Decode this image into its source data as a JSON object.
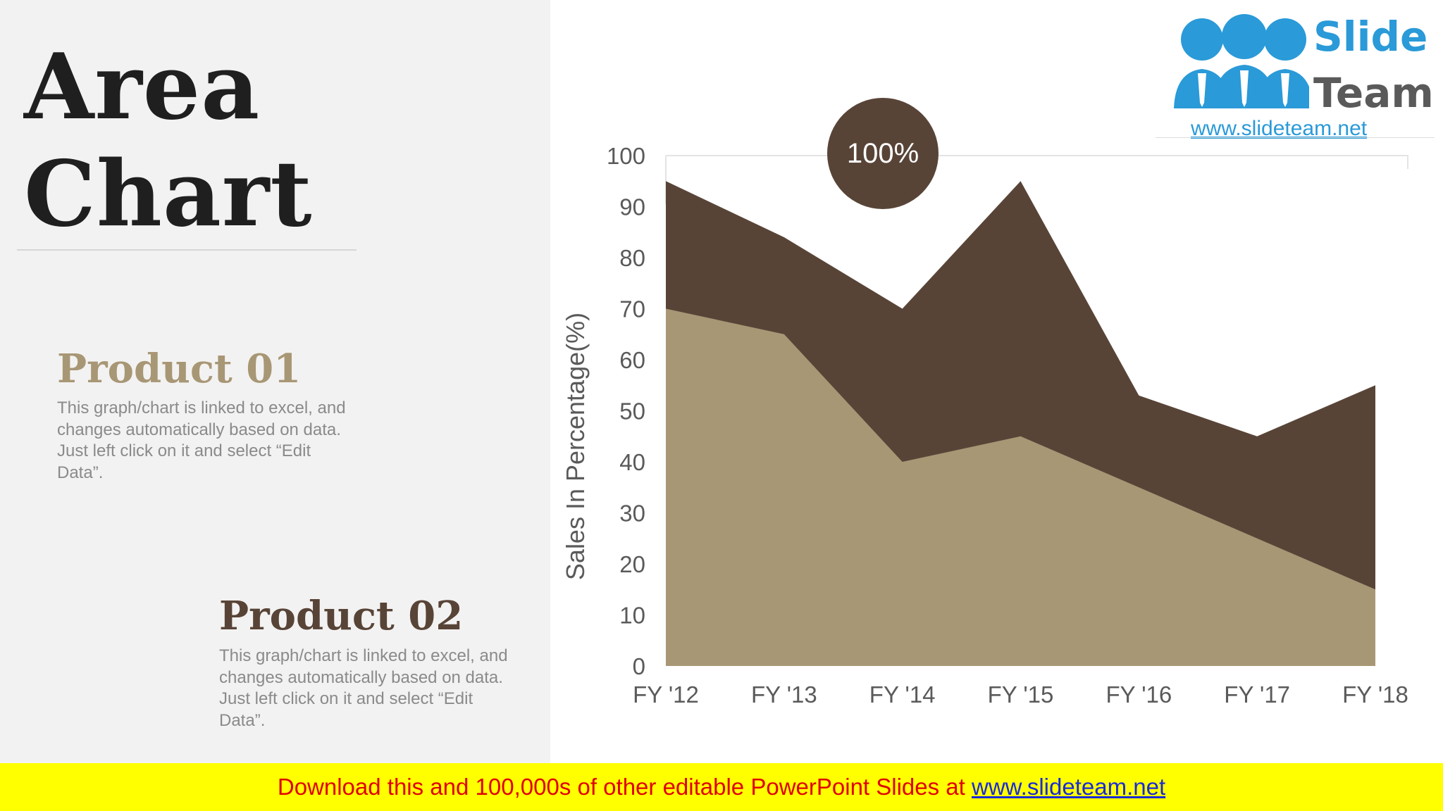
{
  "page": {
    "title_line1": "Area",
    "title_line2": "Chart"
  },
  "products": [
    {
      "heading": "Product 01",
      "description": "This graph/chart is linked to excel, and changes automatically based on data. Just left click on it and select “Edit Data”."
    },
    {
      "heading": "Product 02",
      "description": "This graph/chart is linked to excel, and changes automatically based on data. Just left click on it and select “Edit Data”."
    }
  ],
  "logo": {
    "word1": "Slide",
    "word2": "Team",
    "url": "www.slideteam.net",
    "icon": "three-people-icon"
  },
  "badge": {
    "text": "100%"
  },
  "banner": {
    "text": "Download this and 100,000s of other editable PowerPoint Slides at ",
    "link": "www.slideteam.net"
  },
  "colors": {
    "product01": "#a89775",
    "product02": "#584437",
    "banner_bg": "#ffff00",
    "banner_text": "#e00000",
    "brand_blue": "#2a9ad8"
  },
  "chart_data": {
    "type": "area",
    "stacked": false,
    "categories": [
      "FY '12",
      "FY '13",
      "FY '14",
      "FY '15",
      "FY '16",
      "FY '17",
      "FY '18"
    ],
    "series": [
      {
        "name": "Product 02",
        "color": "#584437",
        "values": [
          95,
          84,
          70,
          95,
          53,
          45,
          55
        ]
      },
      {
        "name": "Product 01",
        "color": "#a89775",
        "values": [
          70,
          65,
          40,
          45,
          35,
          25,
          15
        ]
      }
    ],
    "ylabel": "Sales In Percentage(%)",
    "xlabel": "",
    "ylim": [
      0,
      100
    ],
    "yticks": [
      0,
      10,
      20,
      30,
      40,
      50,
      60,
      70,
      80,
      90,
      100
    ],
    "grid": false,
    "legend": "none"
  }
}
